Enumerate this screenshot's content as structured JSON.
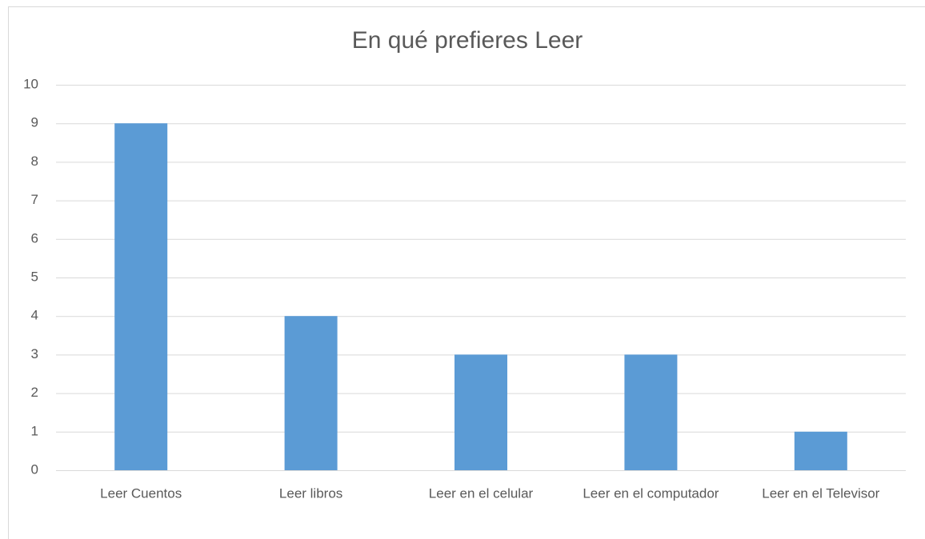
{
  "chart_data": {
    "type": "bar",
    "title": "En qué prefieres Leer",
    "categories": [
      "Leer Cuentos",
      "Leer libros",
      "Leer en el celular",
      "Leer en el computador",
      "Leer en el Televisor"
    ],
    "values": [
      9,
      4,
      3,
      3,
      1
    ],
    "color": "#5b9bd5",
    "ylim": [
      0,
      10
    ],
    "yticks": [
      0,
      1,
      2,
      3,
      4,
      5,
      6,
      7,
      8,
      9,
      10
    ],
    "grid": true
  }
}
